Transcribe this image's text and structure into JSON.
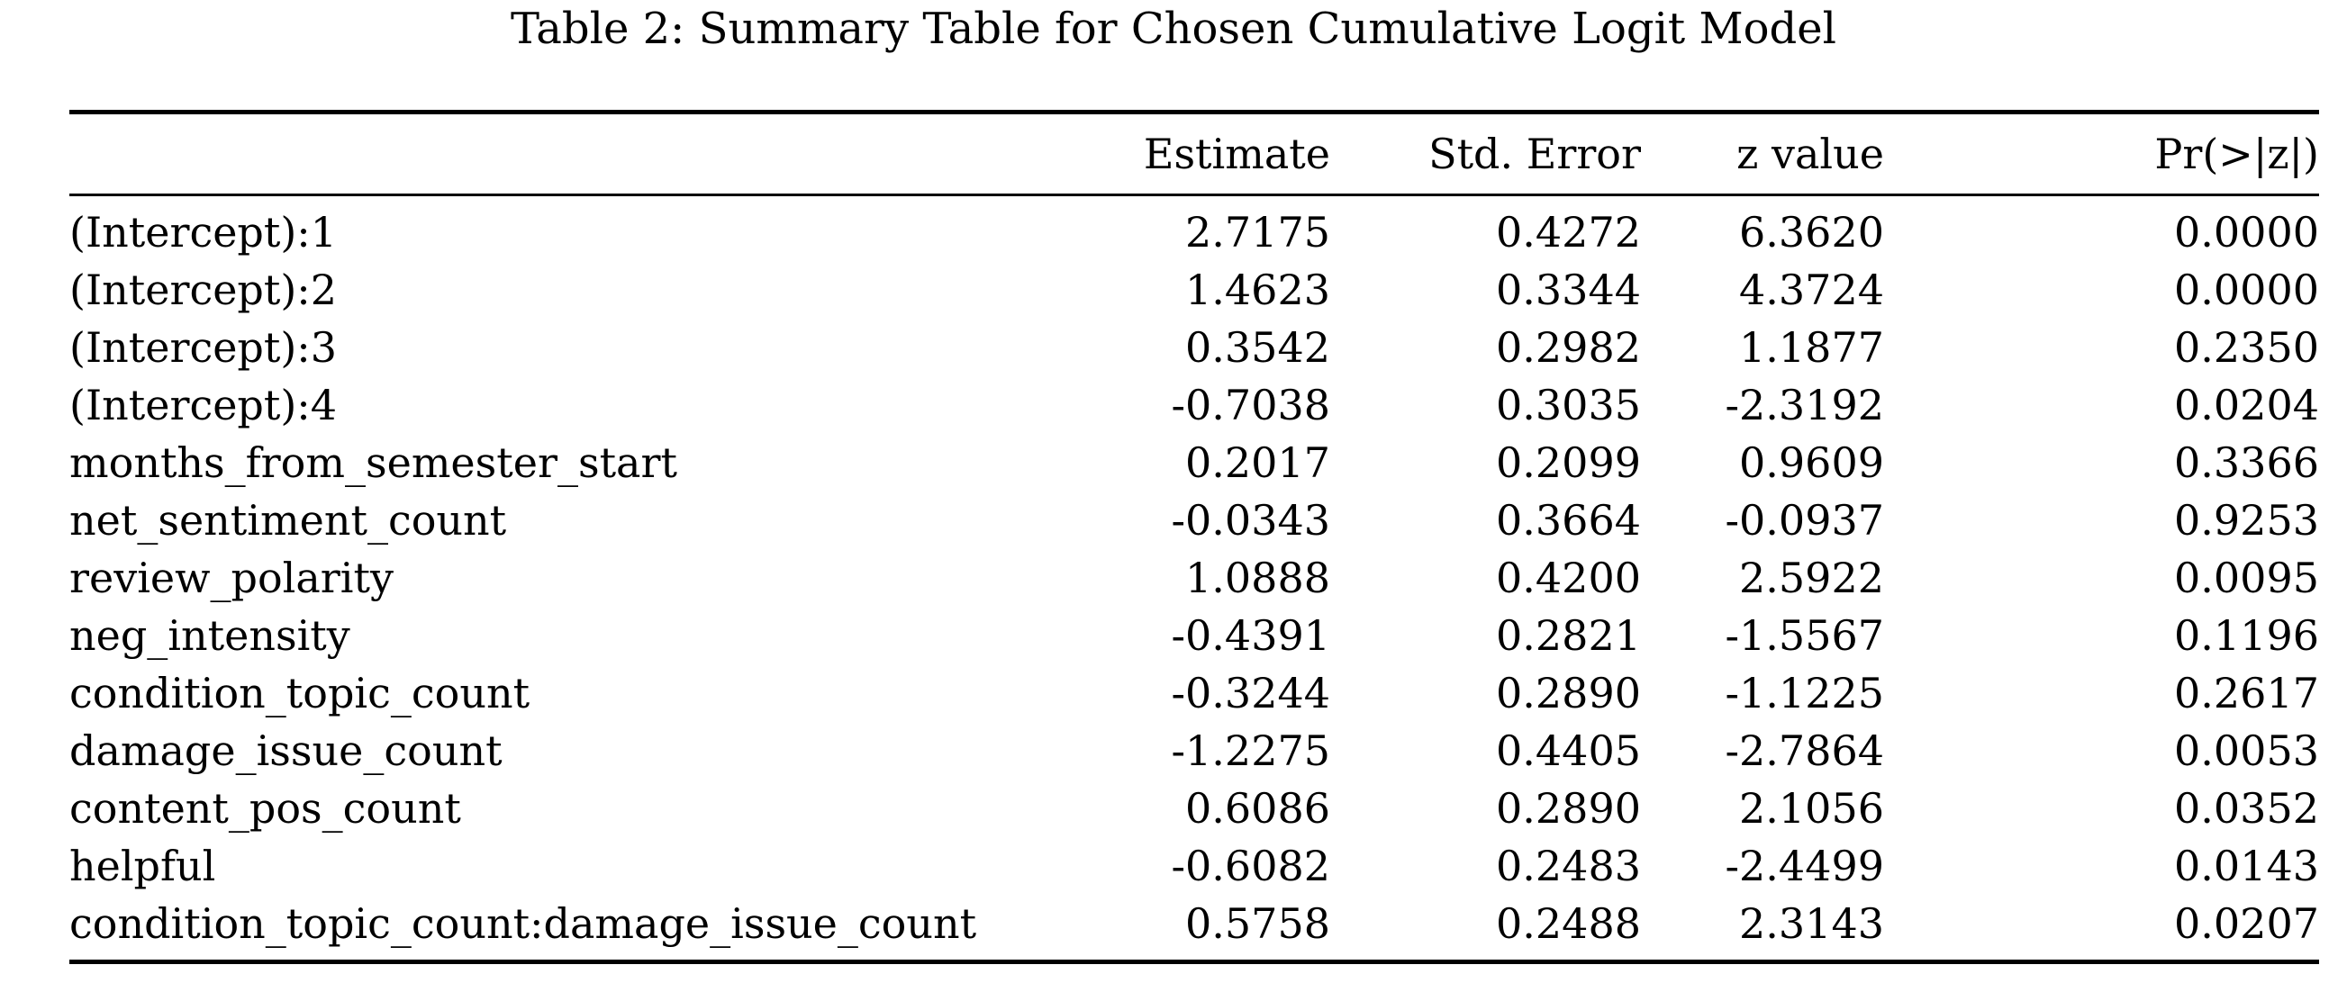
{
  "caption": "Table 2: Summary Table for Chosen Cumulative Logit Model",
  "table": {
    "columns": [
      "",
      "Estimate",
      "Std. Error",
      "z value",
      "Pr(>|z|)"
    ],
    "rows": [
      {
        "term": "(Intercept):1",
        "estimate": "2.7175",
        "std_error": "0.4272",
        "z_value": "6.3620",
        "p_value": "0.0000"
      },
      {
        "term": "(Intercept):2",
        "estimate": "1.4623",
        "std_error": "0.3344",
        "z_value": "4.3724",
        "p_value": "0.0000"
      },
      {
        "term": "(Intercept):3",
        "estimate": "0.3542",
        "std_error": "0.2982",
        "z_value": "1.1877",
        "p_value": "0.2350"
      },
      {
        "term": "(Intercept):4",
        "estimate": "-0.7038",
        "std_error": "0.3035",
        "z_value": "-2.3192",
        "p_value": "0.0204"
      },
      {
        "term": "months_from_semester_start",
        "estimate": "0.2017",
        "std_error": "0.2099",
        "z_value": "0.9609",
        "p_value": "0.3366"
      },
      {
        "term": "net_sentiment_count",
        "estimate": "-0.0343",
        "std_error": "0.3664",
        "z_value": "-0.0937",
        "p_value": "0.9253"
      },
      {
        "term": "review_polarity",
        "estimate": "1.0888",
        "std_error": "0.4200",
        "z_value": "2.5922",
        "p_value": "0.0095"
      },
      {
        "term": "neg_intensity",
        "estimate": "-0.4391",
        "std_error": "0.2821",
        "z_value": "-1.5567",
        "p_value": "0.1196"
      },
      {
        "term": "condition_topic_count",
        "estimate": "-0.3244",
        "std_error": "0.2890",
        "z_value": "-1.1225",
        "p_value": "0.2617"
      },
      {
        "term": "damage_issue_count",
        "estimate": "-1.2275",
        "std_error": "0.4405",
        "z_value": "-2.7864",
        "p_value": "0.0053"
      },
      {
        "term": "content_pos_count",
        "estimate": "0.6086",
        "std_error": "0.2890",
        "z_value": "2.1056",
        "p_value": "0.0352"
      },
      {
        "term": "helpful",
        "estimate": "-0.6082",
        "std_error": "0.2483",
        "z_value": "-2.4499",
        "p_value": "0.0143"
      },
      {
        "term": "condition_topic_count:damage_issue_count",
        "estimate": "0.5758",
        "std_error": "0.2488",
        "z_value": "2.3143",
        "p_value": "0.0207"
      }
    ]
  }
}
